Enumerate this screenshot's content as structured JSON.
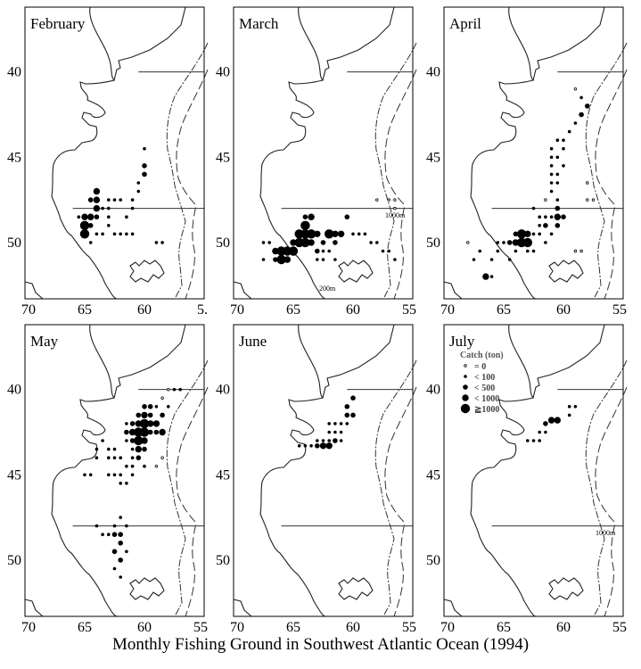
{
  "figure_title": "Monthly Fishing Ground in Southwest Atlantic Ocean (1994)",
  "x_tick_labels": [
    "70",
    "65",
    "60",
    "55"
  ],
  "x_tick_label_clipped": "5.",
  "y_tick_labels": [
    "40",
    "45",
    "50"
  ],
  "legend": {
    "title": "Catch (ton)",
    "entries": [
      {
        "label": "= 0",
        "size": 0
      },
      {
        "label": "< 100",
        "size": 1
      },
      {
        "label": "< 500",
        "size": 2
      },
      {
        "label": "< 1000",
        "size": 3
      },
      {
        "label": "≧1000",
        "size": 4
      }
    ]
  },
  "contour_labels": {
    "shallow": "200m",
    "deep": "1000m"
  },
  "colors": {
    "ink": "#000000",
    "coast": "#222222",
    "background": "#ffffff"
  },
  "panels": [
    {
      "month": "February",
      "points": [
        [
          -60,
          44.5,
          1
        ],
        [
          -60,
          45.5,
          2
        ],
        [
          -60,
          46,
          2
        ],
        [
          -60.5,
          46.5,
          1
        ],
        [
          -60.5,
          47,
          1
        ],
        [
          -61,
          47.5,
          1
        ],
        [
          -61,
          48,
          1
        ],
        [
          -61.5,
          48.5,
          1
        ],
        [
          -61,
          49.5,
          1
        ],
        [
          -61.5,
          49.5,
          1
        ],
        [
          -62,
          47.5,
          1
        ],
        [
          -62.5,
          47.5,
          1
        ],
        [
          -63,
          47.5,
          1
        ],
        [
          -62,
          49.5,
          1
        ],
        [
          -62.5,
          49.5,
          1
        ],
        [
          -63,
          49,
          1
        ],
        [
          -63.5,
          49.5,
          1
        ],
        [
          -64,
          47,
          3
        ],
        [
          -64,
          47.5,
          3
        ],
        [
          -64,
          48,
          3
        ],
        [
          -64,
          48.5,
          2
        ],
        [
          -64.5,
          47.5,
          2
        ],
        [
          -64.5,
          48.5,
          3
        ],
        [
          -64.5,
          49,
          2
        ],
        [
          -63.5,
          48,
          1
        ],
        [
          -64,
          49.5,
          1
        ],
        [
          -64.5,
          50,
          1
        ],
        [
          -65,
          48.5,
          3
        ],
        [
          -65,
          49,
          4
        ],
        [
          -65,
          49.5,
          4
        ],
        [
          -65.5,
          48.5,
          1
        ],
        [
          -63,
          48,
          1
        ],
        [
          -63,
          48.5,
          1
        ],
        [
          -59,
          50,
          1
        ],
        [
          -58.5,
          50,
          1
        ]
      ]
    },
    {
      "month": "March",
      "points": [
        [
          -58,
          47.5,
          0
        ],
        [
          -57,
          47.5,
          0
        ],
        [
          -56.5,
          47.5,
          0
        ],
        [
          -56.5,
          48,
          0
        ],
        [
          -60,
          49.5,
          1
        ],
        [
          -59.5,
          49.5,
          1
        ],
        [
          -59,
          49.5,
          1
        ],
        [
          -58.5,
          50,
          1
        ],
        [
          -58,
          50,
          1
        ],
        [
          -57.5,
          50.5,
          1
        ],
        [
          -57,
          50.5,
          1
        ],
        [
          -56.5,
          51,
          1
        ],
        [
          -60.5,
          48.5,
          2
        ],
        [
          -61,
          49.5,
          3
        ],
        [
          -61.5,
          49.5,
          3
        ],
        [
          -62,
          49.5,
          4
        ],
        [
          -62.5,
          50,
          2
        ],
        [
          -61.5,
          50,
          2
        ],
        [
          -62,
          50.5,
          1
        ],
        [
          -62.5,
          51,
          1
        ],
        [
          -61.5,
          51,
          1
        ],
        [
          -63,
          49.5,
          3
        ],
        [
          -63.5,
          49.5,
          4
        ],
        [
          -64,
          49.5,
          4
        ],
        [
          -64.5,
          49.5,
          4
        ],
        [
          -63.5,
          50,
          3
        ],
        [
          -64,
          50,
          4
        ],
        [
          -64.5,
          50,
          4
        ],
        [
          -65,
          50,
          3
        ],
        [
          -64,
          49,
          4
        ],
        [
          -63.5,
          48.5,
          3
        ],
        [
          -64,
          48.5,
          2
        ],
        [
          -65,
          50.5,
          4
        ],
        [
          -65.5,
          50.5,
          4
        ],
        [
          -66,
          50.5,
          4
        ],
        [
          -66.5,
          50.5,
          3
        ],
        [
          -65.5,
          51,
          3
        ],
        [
          -66,
          51,
          4
        ],
        [
          -66.5,
          51,
          2
        ],
        [
          -67,
          50,
          1
        ],
        [
          -67.5,
          50,
          1
        ],
        [
          -67.5,
          51,
          1
        ],
        [
          -63,
          50.5,
          2
        ],
        [
          -62.5,
          50.5,
          1
        ],
        [
          -63,
          51,
          1
        ]
      ]
    },
    {
      "month": "April",
      "points": [
        [
          -59,
          41,
          0
        ],
        [
          -58.5,
          41.5,
          1
        ],
        [
          -58,
          42,
          2
        ],
        [
          -58.5,
          42.5,
          2
        ],
        [
          -59,
          43,
          1
        ],
        [
          -59.5,
          43.5,
          1
        ],
        [
          -60,
          44,
          1
        ],
        [
          -60.5,
          44,
          1
        ],
        [
          -60,
          44.5,
          1
        ],
        [
          -60.5,
          45,
          1
        ],
        [
          -60,
          45.5,
          1
        ],
        [
          -60.5,
          46,
          1
        ],
        [
          -61,
          44.5,
          1
        ],
        [
          -61,
          45,
          1
        ],
        [
          -61,
          45.5,
          1
        ],
        [
          -61,
          46,
          1
        ],
        [
          -61,
          46.5,
          1
        ],
        [
          -60.5,
          46.5,
          1
        ],
        [
          -61,
          47,
          1
        ],
        [
          -60.5,
          47.5,
          1
        ],
        [
          -58,
          46.5,
          0
        ],
        [
          -57.5,
          47.5,
          0
        ],
        [
          -58,
          47.5,
          0
        ],
        [
          -61.5,
          47.5,
          0
        ],
        [
          -60.5,
          48,
          2
        ],
        [
          -60.5,
          48.5,
          3
        ],
        [
          -60,
          48.5,
          2
        ],
        [
          -61,
          48.5,
          1
        ],
        [
          -61.5,
          48.5,
          1
        ],
        [
          -62,
          48.5,
          1
        ],
        [
          -62.5,
          48,
          1
        ],
        [
          -60.5,
          49,
          2
        ],
        [
          -61.5,
          49,
          2
        ],
        [
          -62,
          49,
          1
        ],
        [
          -61,
          49.5,
          1
        ],
        [
          -62,
          49.5,
          1
        ],
        [
          -61.5,
          50,
          1
        ],
        [
          -63,
          49.5,
          3
        ],
        [
          -63.5,
          49.5,
          4
        ],
        [
          -63,
          50,
          4
        ],
        [
          -63.5,
          50,
          4
        ],
        [
          -64,
          50,
          3
        ],
        [
          -64.5,
          50,
          2
        ],
        [
          -65,
          50,
          1
        ],
        [
          -65.5,
          50,
          1
        ],
        [
          -64,
          49.5,
          2
        ],
        [
          -62.5,
          49.5,
          1
        ],
        [
          -62.5,
          50.5,
          1
        ],
        [
          -63,
          50.5,
          1
        ],
        [
          -64,
          50.5,
          1
        ],
        [
          -64.5,
          51,
          1
        ],
        [
          -65.5,
          50.5,
          1
        ],
        [
          -66,
          51,
          1
        ],
        [
          -66.5,
          52,
          3
        ],
        [
          -66,
          52,
          1
        ],
        [
          -67,
          50.5,
          1
        ],
        [
          -67.5,
          51,
          1
        ],
        [
          -68,
          50,
          0
        ],
        [
          -59,
          50.5,
          0
        ],
        [
          -58.5,
          50.5,
          0
        ]
      ]
    },
    {
      "month": "May",
      "points": [
        [
          -58,
          40,
          0
        ],
        [
          -57.5,
          40,
          1
        ],
        [
          -57,
          40,
          1
        ],
        [
          -58.5,
          40.5,
          0
        ],
        [
          -58,
          41,
          1
        ],
        [
          -59,
          41,
          1
        ],
        [
          -59.5,
          41,
          2
        ],
        [
          -60,
          41,
          2
        ],
        [
          -59.5,
          41.5,
          2
        ],
        [
          -60,
          41.5,
          3
        ],
        [
          -60.5,
          41.5,
          2
        ],
        [
          -58.5,
          41.5,
          2
        ],
        [
          -59,
          42,
          3
        ],
        [
          -59.5,
          42,
          3
        ],
        [
          -60,
          42,
          4
        ],
        [
          -60.5,
          42,
          3
        ],
        [
          -61,
          42,
          2
        ],
        [
          -61.5,
          42,
          1
        ],
        [
          -58.5,
          42.5,
          3
        ],
        [
          -59,
          42.5,
          2
        ],
        [
          -59.5,
          42.5,
          2
        ],
        [
          -60,
          42.5,
          4
        ],
        [
          -60.5,
          42.5,
          4
        ],
        [
          -61,
          42.5,
          3
        ],
        [
          -61.5,
          42.5,
          2
        ],
        [
          -60,
          43,
          3
        ],
        [
          -60.5,
          43,
          4
        ],
        [
          -61,
          43,
          2
        ],
        [
          -61.5,
          43,
          1
        ],
        [
          -60,
          43.5,
          2
        ],
        [
          -60.5,
          43.5,
          3
        ],
        [
          -61,
          43.5,
          1
        ],
        [
          -60.5,
          44,
          2
        ],
        [
          -61,
          44,
          1
        ],
        [
          -60,
          44.5,
          1
        ],
        [
          -61,
          44.5,
          1
        ],
        [
          -61.5,
          44.5,
          1
        ],
        [
          -61,
          45,
          1
        ],
        [
          -62,
          45,
          1
        ],
        [
          -61.5,
          45.5,
          1
        ],
        [
          -62,
          45.5,
          1
        ],
        [
          -62.5,
          43.5,
          1
        ],
        [
          -62.5,
          44,
          1
        ],
        [
          -63,
          44,
          1
        ],
        [
          -62,
          44,
          1
        ],
        [
          -63,
          43.5,
          1
        ],
        [
          -63.5,
          43,
          1
        ],
        [
          -64,
          43.5,
          1
        ],
        [
          -64,
          44,
          1
        ],
        [
          -64.5,
          45,
          1
        ],
        [
          -65,
          45,
          1
        ],
        [
          -63,
          45,
          1
        ],
        [
          -62.5,
          45,
          1
        ],
        [
          -59,
          44.5,
          0
        ],
        [
          -58.5,
          44,
          0
        ],
        [
          -62,
          47.5,
          1
        ],
        [
          -62.5,
          48,
          1
        ],
        [
          -61.5,
          48,
          1
        ],
        [
          -62,
          48.5,
          2
        ],
        [
          -62.5,
          48.5,
          2
        ],
        [
          -63,
          48.5,
          1
        ],
        [
          -63.5,
          48.5,
          1
        ],
        [
          -64,
          48,
          1
        ],
        [
          -62,
          49,
          2
        ],
        [
          -62.5,
          49.5,
          2
        ],
        [
          -62,
          50,
          2
        ],
        [
          -62.5,
          50.5,
          1
        ],
        [
          -61.5,
          49.5,
          1
        ],
        [
          -62,
          51,
          1
        ]
      ]
    },
    {
      "month": "June",
      "points": [
        [
          -60,
          40.5,
          2
        ],
        [
          -60.5,
          41,
          2
        ],
        [
          -60.5,
          41.5,
          2
        ],
        [
          -60,
          41.5,
          2
        ],
        [
          -61,
          42,
          1
        ],
        [
          -61.5,
          42,
          1
        ],
        [
          -62,
          42,
          1
        ],
        [
          -60.5,
          42,
          1
        ],
        [
          -61,
          42.5,
          1
        ],
        [
          -61.5,
          42.5,
          1
        ],
        [
          -62,
          42.5,
          1
        ],
        [
          -61,
          43,
          1
        ],
        [
          -62,
          43,
          1
        ],
        [
          -62.5,
          43,
          1
        ],
        [
          -63,
          43,
          1
        ],
        [
          -61.5,
          43,
          2
        ],
        [
          -62,
          43.3,
          3
        ],
        [
          -62.5,
          43.3,
          3
        ],
        [
          -63,
          43.3,
          2
        ],
        [
          -63.5,
          43.3,
          1
        ],
        [
          -64,
          43.3,
          1
        ],
        [
          -64.5,
          43.3,
          1
        ]
      ]
    },
    {
      "month": "July",
      "points": [
        [
          -59.5,
          41,
          1
        ],
        [
          -59,
          41,
          1
        ],
        [
          -59.5,
          41.5,
          1
        ],
        [
          -60.5,
          41.8,
          3
        ],
        [
          -61,
          41.8,
          3
        ],
        [
          -61.5,
          42,
          2
        ],
        [
          -61.5,
          42.5,
          1
        ],
        [
          -62,
          42.5,
          1
        ],
        [
          -62.5,
          43,
          1
        ],
        [
          -63,
          43,
          1
        ],
        [
          -62,
          43,
          1
        ]
      ]
    }
  ]
}
